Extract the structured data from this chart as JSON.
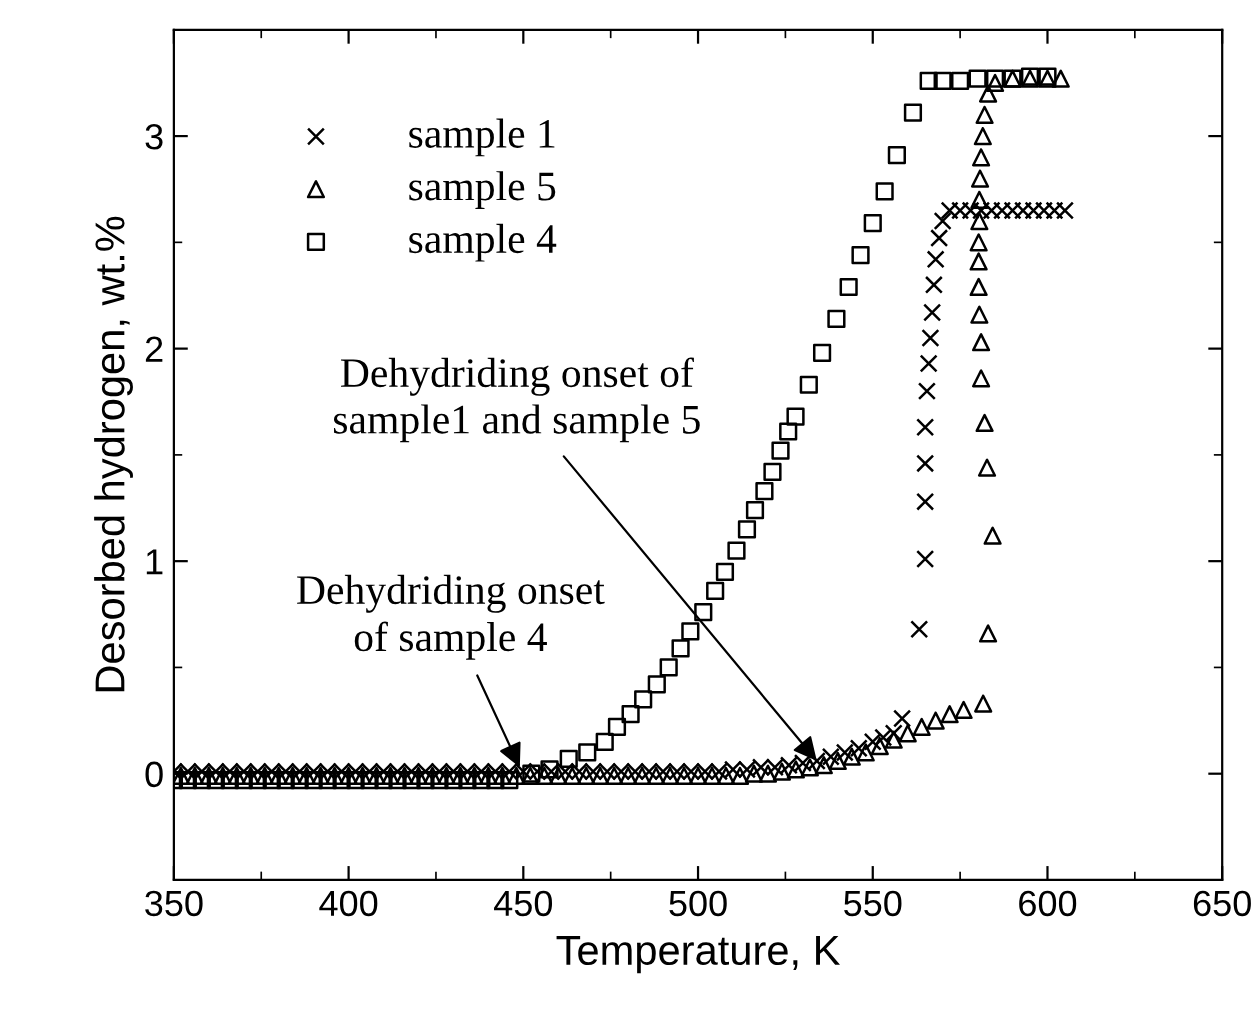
{
  "chart_data": {
    "type": "scatter",
    "xlabel": "Temperature, K",
    "ylabel": "Desorbed hydrogen, wt.%",
    "xlim": [
      350,
      650
    ],
    "ylim": [
      -0.5,
      3.5
    ],
    "xticks": [
      350,
      400,
      450,
      500,
      550,
      600,
      650
    ],
    "yticks": [
      0,
      1,
      2,
      3
    ],
    "grid": false,
    "legend": "top left",
    "series": [
      {
        "name": "sample 1",
        "color": "#000000",
        "marker": "cross",
        "x": [
          350,
          354,
          358,
          362,
          366,
          370,
          374,
          378,
          382,
          386,
          390,
          394,
          398,
          402,
          406,
          410,
          414,
          418,
          422,
          426,
          430,
          434,
          438,
          442,
          446,
          450,
          454,
          458,
          462,
          466,
          470,
          474,
          478,
          482,
          486,
          490,
          494,
          498,
          502,
          506,
          510,
          514,
          518,
          522,
          526,
          530,
          534,
          538,
          542,
          546,
          550,
          553,
          556,
          558.4,
          563.3,
          565,
          565,
          565,
          565,
          565.5,
          566,
          566.5,
          567,
          567.5,
          568,
          569,
          570,
          572,
          575,
          578,
          581,
          584,
          587,
          590,
          593,
          596,
          599,
          602,
          605
        ],
        "values": [
          0.01,
          0.01,
          0.01,
          0.01,
          0.01,
          0.01,
          0.01,
          0.01,
          0.01,
          0.01,
          0.01,
          0.01,
          0.01,
          0.01,
          0.01,
          0.01,
          0.01,
          0.01,
          0.01,
          0.01,
          0.01,
          0.01,
          0.01,
          0.01,
          0.01,
          0.01,
          0.01,
          0.01,
          0.01,
          0.01,
          0.01,
          0.01,
          0.01,
          0.01,
          0.01,
          0.01,
          0.01,
          0.01,
          0.01,
          0.01,
          0.02,
          0.02,
          0.03,
          0.03,
          0.04,
          0.05,
          0.06,
          0.08,
          0.1,
          0.12,
          0.15,
          0.17,
          0.19,
          0.26,
          0.68,
          1.01,
          1.28,
          1.46,
          1.63,
          1.8,
          1.93,
          2.05,
          2.17,
          2.3,
          2.42,
          2.52,
          2.6,
          2.65,
          2.65,
          2.65,
          2.65,
          2.65,
          2.65,
          2.65,
          2.65,
          2.65,
          2.65,
          2.65,
          2.65
        ]
      },
      {
        "name": "sample 5",
        "color": "#000000",
        "marker": "triangle",
        "x": [
          352,
          356,
          360,
          364,
          368,
          372,
          376,
          380,
          384,
          388,
          392,
          396,
          400,
          404,
          408,
          412,
          416,
          420,
          424,
          428,
          432,
          436,
          440,
          444,
          448,
          452,
          456,
          460,
          464,
          468,
          472,
          476,
          480,
          484,
          488,
          492,
          496,
          500,
          504,
          508,
          512,
          516,
          520,
          524,
          528,
          532,
          536,
          540,
          544,
          548,
          552,
          556,
          560,
          564,
          568,
          572,
          576,
          581.6,
          583,
          584.3,
          582.7,
          582,
          581,
          581,
          580.5,
          580.3,
          580.3,
          580.3,
          580.5,
          580.5,
          580.7,
          581,
          581.5,
          582,
          583,
          585,
          590,
          595,
          600,
          603.8
        ],
        "values": [
          -0.01,
          -0.01,
          -0.01,
          -0.01,
          -0.01,
          -0.01,
          -0.01,
          -0.01,
          -0.01,
          -0.01,
          -0.01,
          -0.01,
          -0.01,
          -0.01,
          -0.01,
          -0.01,
          -0.01,
          -0.01,
          -0.01,
          -0.01,
          -0.01,
          -0.01,
          -0.01,
          -0.01,
          -0.01,
          -0.01,
          -0.01,
          -0.01,
          -0.01,
          -0.01,
          -0.01,
          -0.01,
          -0.01,
          -0.01,
          -0.01,
          -0.01,
          -0.01,
          -0.01,
          -0.01,
          -0.01,
          -0.01,
          0.0,
          0.0,
          0.01,
          0.02,
          0.03,
          0.04,
          0.06,
          0.08,
          0.1,
          0.13,
          0.16,
          0.19,
          0.22,
          0.25,
          0.28,
          0.3,
          0.33,
          0.66,
          1.12,
          1.44,
          1.65,
          1.86,
          2.03,
          2.16,
          2.29,
          2.41,
          2.5,
          2.6,
          2.7,
          2.8,
          2.9,
          3.0,
          3.1,
          3.2,
          3.25,
          3.27,
          3.27,
          3.27,
          3.27
        ]
      },
      {
        "name": "sample 4",
        "color": "#000000",
        "marker": "square",
        "x": [
          350,
          354,
          358,
          362,
          366,
          370,
          374,
          378,
          382,
          386,
          390,
          394,
          398,
          402,
          406,
          410,
          414,
          418,
          422,
          426,
          430,
          434,
          438,
          442,
          446,
          452.3,
          457.5,
          463,
          468.3,
          473.3,
          476.8,
          480.7,
          484.3,
          488.2,
          491.6,
          495,
          497.8,
          501.5,
          504.9,
          507.7,
          511,
          514,
          516.3,
          519,
          521.3,
          523.6,
          525.8,
          527.9,
          531.7,
          535.5,
          539.6,
          543.1,
          546.5,
          550,
          553.4,
          556.9,
          561.5,
          566,
          570,
          575,
          580,
          585,
          590,
          595,
          600
        ],
        "values": [
          -0.03,
          -0.03,
          -0.03,
          -0.03,
          -0.03,
          -0.03,
          -0.03,
          -0.03,
          -0.03,
          -0.03,
          -0.03,
          -0.03,
          -0.03,
          -0.03,
          -0.03,
          -0.03,
          -0.03,
          -0.03,
          -0.03,
          -0.03,
          -0.03,
          -0.03,
          -0.03,
          -0.03,
          -0.03,
          0.0,
          0.02,
          0.07,
          0.1,
          0.15,
          0.22,
          0.28,
          0.35,
          0.42,
          0.5,
          0.59,
          0.67,
          0.76,
          0.86,
          0.95,
          1.05,
          1.15,
          1.24,
          1.33,
          1.42,
          1.52,
          1.61,
          1.68,
          1.83,
          1.98,
          2.14,
          2.29,
          2.44,
          2.59,
          2.74,
          2.91,
          3.11,
          3.26,
          3.26,
          3.26,
          3.27,
          3.27,
          3.27,
          3.28,
          3.28
        ]
      }
    ],
    "annotations": [
      {
        "text": "Dehydriding onset\nof sample 4",
        "x": 449,
        "y": 0.03
      },
      {
        "text": "Dehydriding onset of\nsample1 and sample 5",
        "x": 534,
        "y": 0.06
      }
    ]
  }
}
